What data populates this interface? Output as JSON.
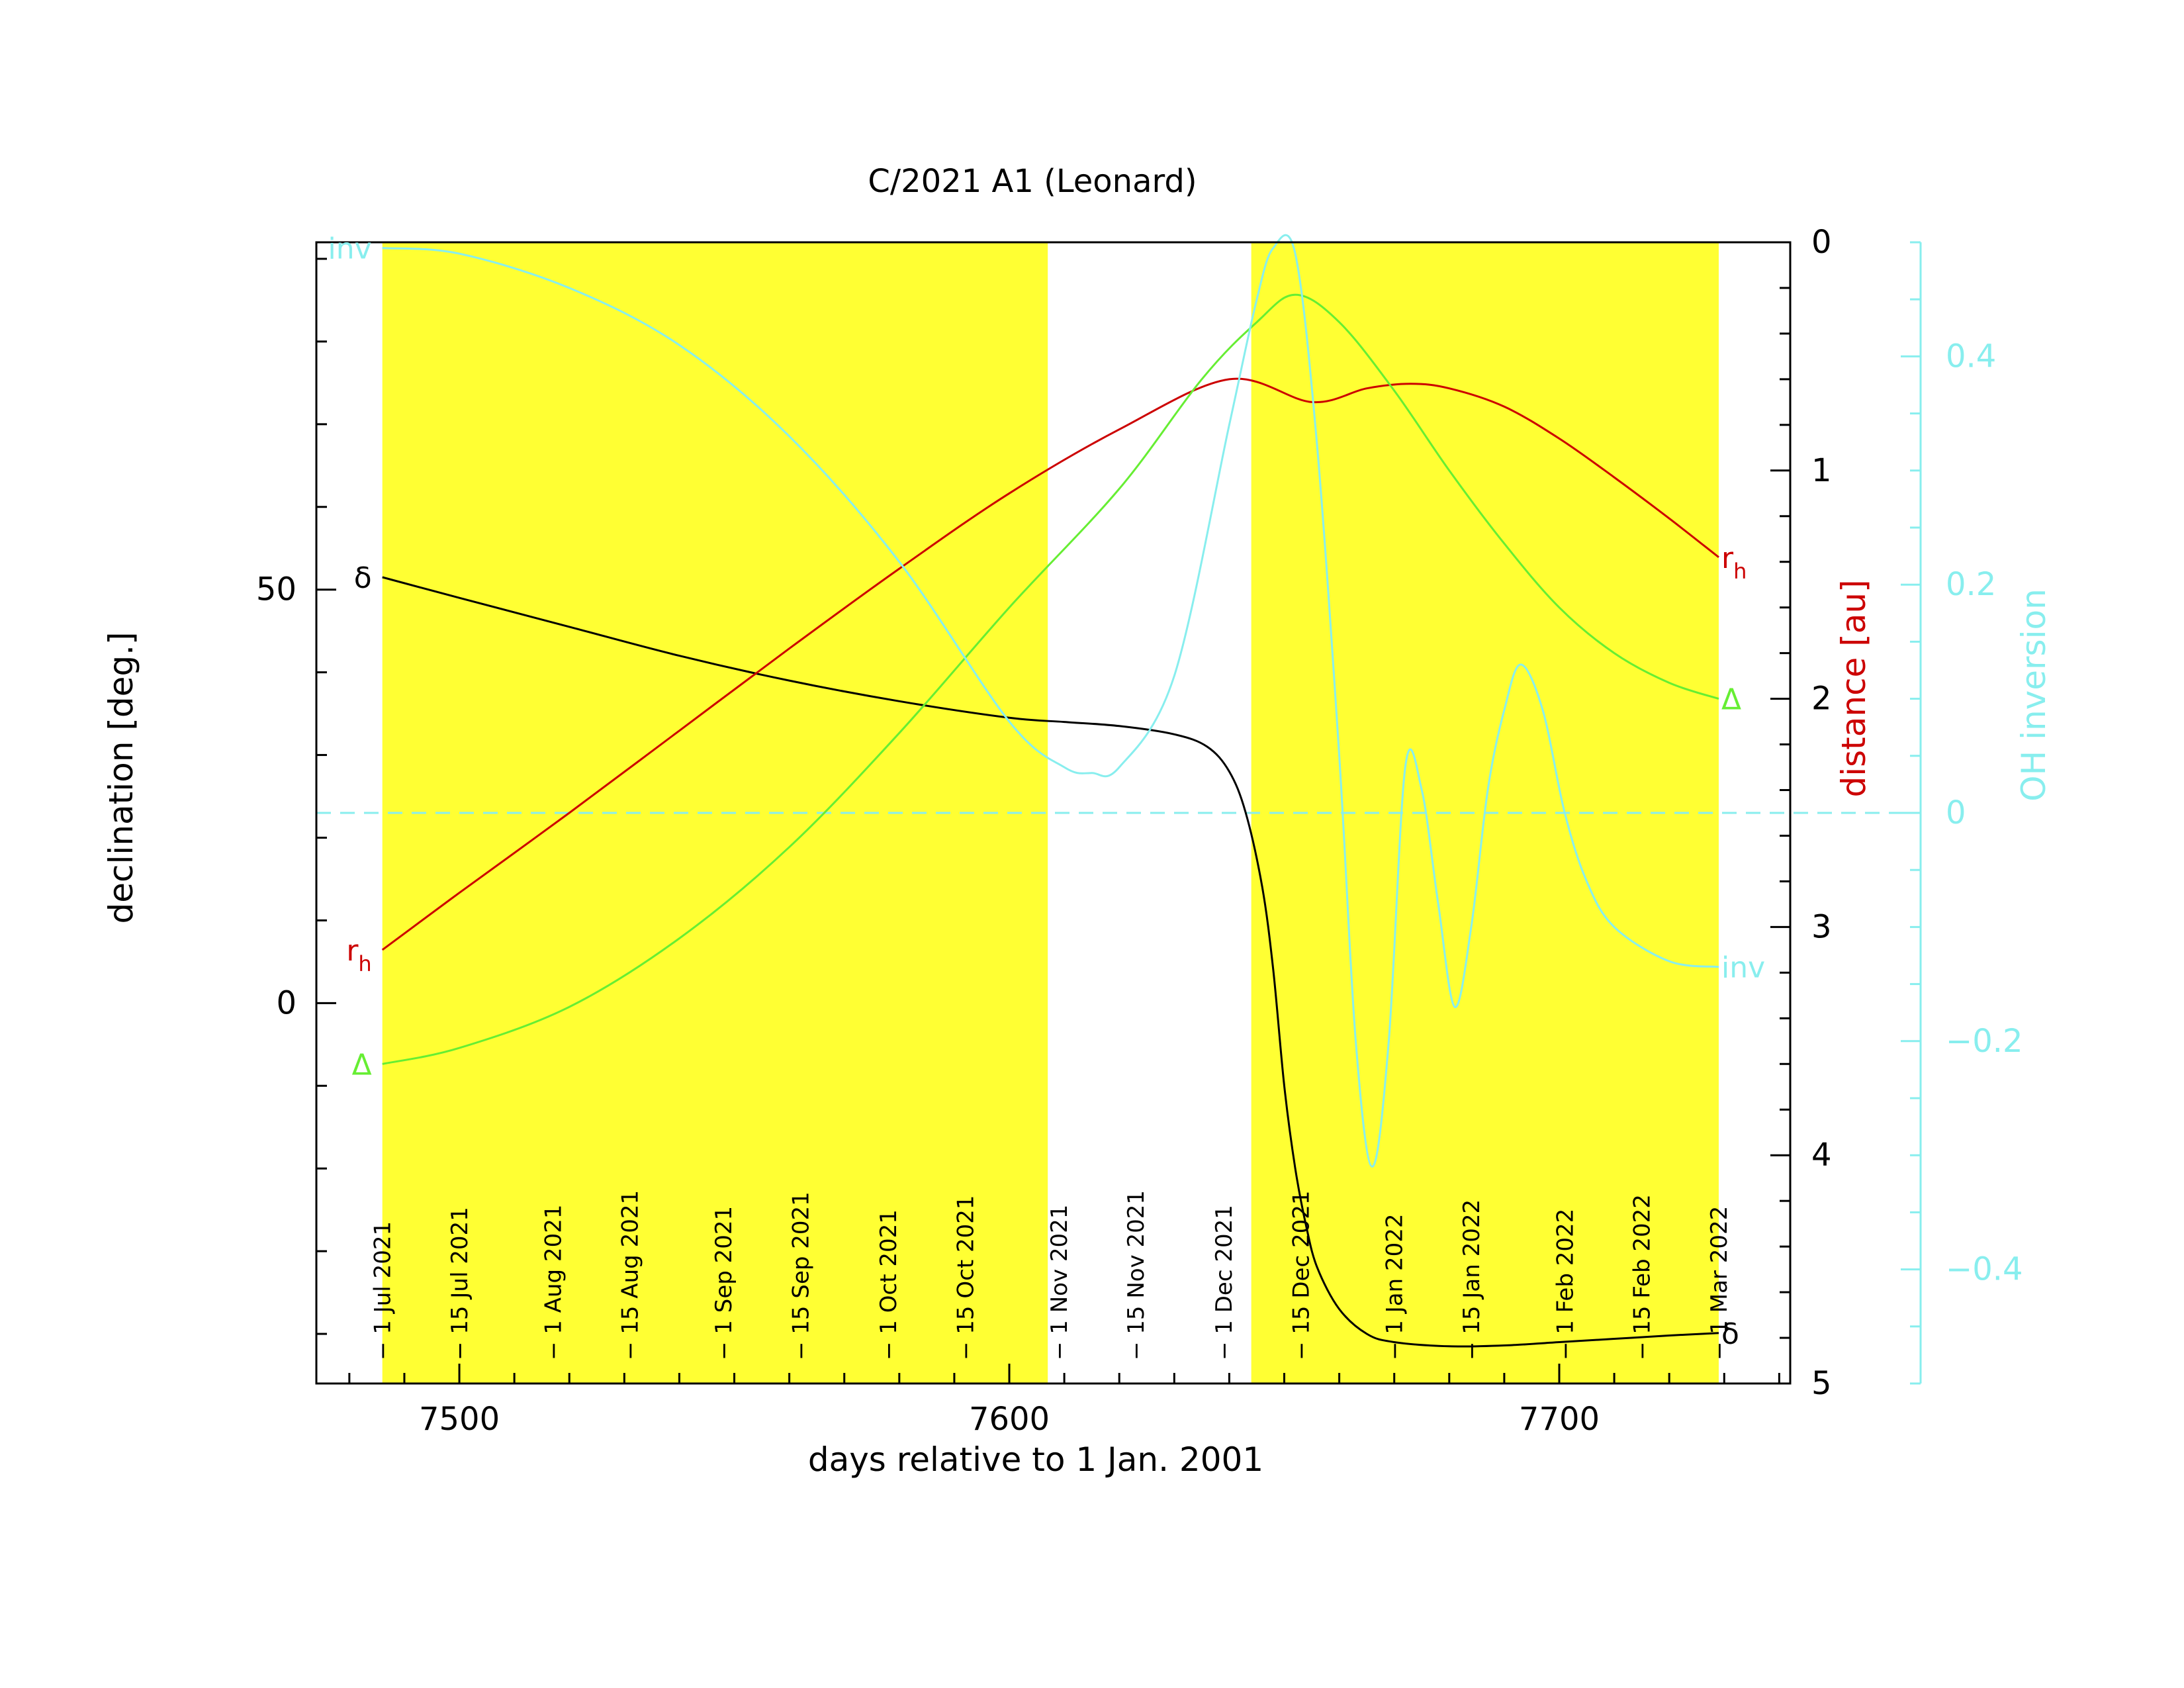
{
  "chart_data": {
    "type": "line",
    "title": "C/2021 A1 (Leonard)",
    "xlabel": "days relative to 1 Jan. 2001",
    "xlim": [
      7474,
      7742
    ],
    "xticks": [
      7500,
      7600,
      7700
    ],
    "xtick_labels": [
      "7500",
      "7600",
      "7700"
    ],
    "left_axis": {
      "label": "declination [deg.]",
      "ylim": [
        -46,
        92
      ],
      "ticks": [
        0,
        50
      ],
      "tick_labels": [
        "0",
        "50"
      ]
    },
    "distance_axis": {
      "label": "distance [au]",
      "ylim": [
        5,
        0
      ],
      "ticks": [
        0,
        1,
        2,
        3,
        4,
        5
      ],
      "tick_labels": [
        "0",
        "1",
        "2",
        "3",
        "4",
        "5"
      ],
      "inverted": true
    },
    "inversion_axis": {
      "label": "OH inversion",
      "ylim": [
        -0.5,
        0.5
      ],
      "ticks": [
        -0.4,
        -0.2,
        0,
        0.2,
        0.4
      ],
      "tick_labels": [
        "−0.4",
        "−0.2",
        "0",
        "0.2",
        "0.4"
      ]
    },
    "shaded_intervals": [
      [
        7486,
        7607
      ],
      [
        7644,
        7729
      ]
    ],
    "zero_line_inversion": 0,
    "date_marks": [
      {
        "label": "1 Jul 2021",
        "x": 7486
      },
      {
        "label": "15 Jul 2021",
        "x": 7500
      },
      {
        "label": "1 Aug 2021",
        "x": 7517
      },
      {
        "label": "15 Aug 2021",
        "x": 7531
      },
      {
        "label": "1 Sep 2021",
        "x": 7548
      },
      {
        "label": "15 Sep 2021",
        "x": 7562
      },
      {
        "label": "1 Oct 2021",
        "x": 7578
      },
      {
        "label": "15 Oct 2021",
        "x": 7592
      },
      {
        "label": "1 Nov 2021",
        "x": 7609
      },
      {
        "label": "15 Nov 2021",
        "x": 7623
      },
      {
        "label": "1 Dec 2021",
        "x": 7639
      },
      {
        "label": "15 Dec 2021",
        "x": 7653
      },
      {
        "label": "1 Jan 2022",
        "x": 7670
      },
      {
        "label": "15 Jan 2022",
        "x": 7684
      },
      {
        "label": "1 Feb 2022",
        "x": 7701
      },
      {
        "label": "15 Feb 2022",
        "x": 7715
      },
      {
        "label": "1 Mar 2022",
        "x": 7729
      }
    ],
    "series": [
      {
        "name": "δ",
        "axis": "left",
        "color": "#000000",
        "x": [
          7486,
          7500,
          7520,
          7540,
          7560,
          7580,
          7600,
          7610,
          7620,
          7630,
          7636,
          7640,
          7643,
          7646,
          7648,
          7650,
          7652,
          7654,
          7656,
          7660,
          7665,
          7670,
          7680,
          7690,
          7700,
          7710,
          7720,
          7729
        ],
        "y": [
          51.5,
          49,
          45.5,
          42,
          39,
          36.5,
          34.5,
          34,
          33.5,
          32.5,
          31,
          28,
          23,
          14,
          4,
          -10,
          -20,
          -27,
          -32,
          -37,
          -40,
          -41,
          -41.5,
          -41.4,
          -41,
          -40.6,
          -40.2,
          -39.9
        ]
      },
      {
        "name": "rh",
        "axis": "distance",
        "color": "#cc0000",
        "x": [
          7486,
          7500,
          7520,
          7540,
          7560,
          7580,
          7600,
          7620,
          7640,
          7655,
          7665,
          7673,
          7680,
          7690,
          7700,
          7710,
          7720,
          7729
        ],
        "y": [
          3.1,
          2.85,
          2.5,
          2.14,
          1.78,
          1.43,
          1.1,
          0.82,
          0.6,
          0.7,
          0.64,
          0.62,
          0.64,
          0.72,
          0.86,
          1.03,
          1.21,
          1.38
        ]
      },
      {
        "name": "Δ",
        "axis": "distance",
        "color": "#66ee33",
        "x": [
          7486,
          7500,
          7520,
          7540,
          7560,
          7580,
          7600,
          7620,
          7635,
          7645,
          7652,
          7660,
          7670,
          7680,
          7690,
          7700,
          7710,
          7720,
          7729
        ],
        "y": [
          3.6,
          3.53,
          3.35,
          3.05,
          2.65,
          2.15,
          1.6,
          1.08,
          0.6,
          0.35,
          0.23,
          0.35,
          0.65,
          1.0,
          1.32,
          1.6,
          1.8,
          1.93,
          2.0
        ]
      },
      {
        "name": "inv",
        "axis": "inversion",
        "color": "#88eeee",
        "x": [
          7486,
          7500,
          7520,
          7540,
          7560,
          7580,
          7600,
          7610,
          7615,
          7620,
          7630,
          7640,
          7645,
          7648,
          7652,
          7656,
          7660,
          7663,
          7666,
          7669,
          7672,
          7675,
          7678,
          7681,
          7684,
          7687,
          7690,
          7693,
          7697,
          7701,
          7705,
          7710,
          7720,
          7729
        ],
        "y": [
          0.495,
          0.49,
          0.46,
          0.41,
          0.33,
          0.22,
          0.08,
          0.04,
          0.035,
          0.04,
          0.12,
          0.34,
          0.45,
          0.495,
          0.49,
          0.32,
          0.05,
          -0.2,
          -0.31,
          -0.2,
          0.04,
          0.02,
          -0.08,
          -0.17,
          -0.1,
          0.02,
          0.09,
          0.13,
          0.09,
          0.0,
          -0.06,
          -0.1,
          -0.13,
          -0.135
        ]
      }
    ],
    "curve_labels": [
      {
        "text": "δ",
        "series": "δ",
        "end": "start",
        "color": "#000000"
      },
      {
        "text": "δ",
        "series": "δ",
        "end": "end",
        "color": "#000000"
      },
      {
        "text": "r",
        "sub": "h",
        "series": "rh",
        "end": "start",
        "color": "#cc0000"
      },
      {
        "text": "r",
        "sub": "h",
        "series": "rh",
        "end": "end",
        "color": "#cc0000"
      },
      {
        "text": "Δ",
        "series": "Δ",
        "end": "start",
        "color": "#66ee33"
      },
      {
        "text": "Δ",
        "series": "Δ",
        "end": "end",
        "color": "#66ee33"
      },
      {
        "text": "inv",
        "series": "inv",
        "end": "start",
        "color": "#88eeee"
      },
      {
        "text": "inv",
        "series": "inv",
        "end": "end",
        "color": "#88eeee"
      }
    ],
    "colors": {
      "shade": "#ffff33",
      "axis": "#000000",
      "distance_label": "#cc0000",
      "inversion_axis": "#88eeee"
    }
  }
}
